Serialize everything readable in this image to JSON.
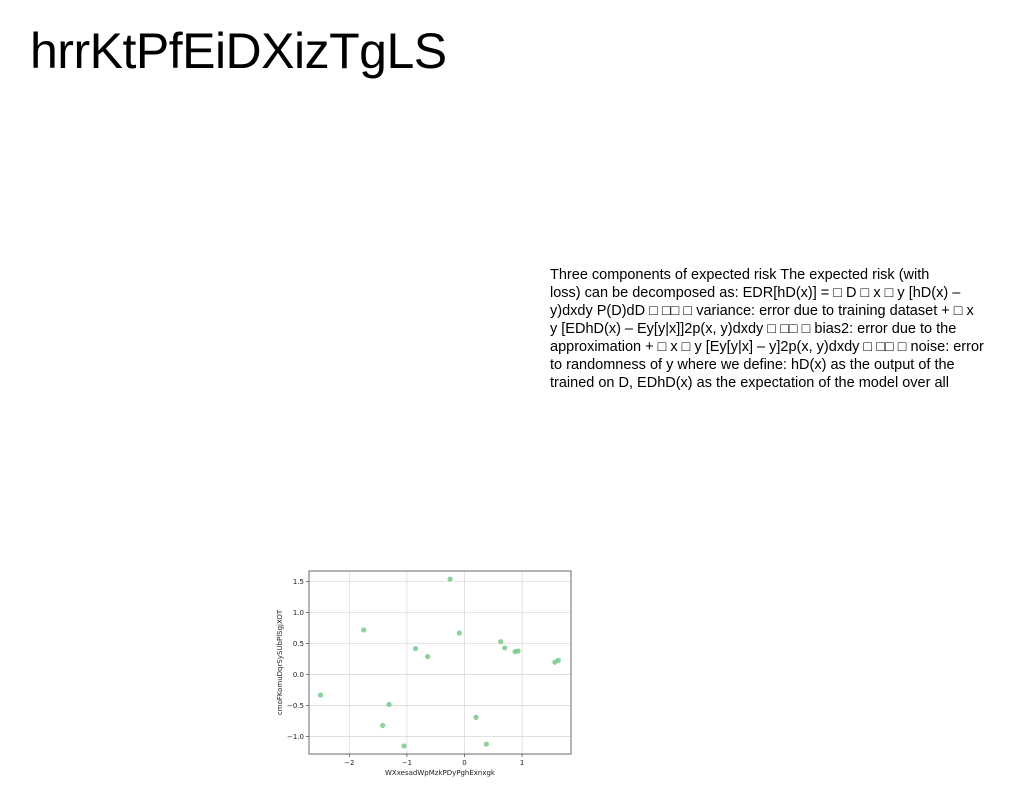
{
  "document": {
    "title": "hrrKtPfEiDXizTgLS",
    "paragraph": "Three components of expected risk The expected risk (with\nloss) can be decomposed as: EDR[hD(x)] = □ D □ x □ y [hD(x) –\ny)dxdy P(D)dD □ □□ □ variance: error due to training dataset + □ x\ny [EDhD(x) – Ey[y|x]]2p(x, y)dxdy □ □□ □ bias2: error due to the\napproximation + □ x □ y [Ey[y|x] – y]2p(x, y)dxdy □ □□ □ noise: error\nto randomness of y where we define: hD(x) as the output of the\ntrained on D, EDhD(x) as the expectation of the model over all"
  },
  "chart_data": {
    "type": "scatter",
    "xlabel": "WXxesadWpMzkPDyPghExnxgk",
    "ylabel": "cmoFKomuDqrSySUbPlSgjXOT",
    "xlim": [
      -2.7,
      1.85
    ],
    "ylim": [
      -1.28,
      1.67
    ],
    "xticks": [
      -2,
      -1,
      0,
      1
    ],
    "xtick_labels": [
      "−2",
      "−1",
      "0",
      "1"
    ],
    "yticks": [
      -1.0,
      -0.5,
      0.0,
      0.5,
      1.0,
      1.5
    ],
    "ytick_labels": [
      "−1.0",
      "−0.5",
      "0.0",
      "0.5",
      "1.0",
      "1.5"
    ],
    "grid": true,
    "point_color": "#77c98a",
    "points": [
      {
        "x": -2.5,
        "y": -0.33
      },
      {
        "x": -1.75,
        "y": 0.72
      },
      {
        "x": -1.42,
        "y": -0.82
      },
      {
        "x": -1.31,
        "y": -0.48
      },
      {
        "x": -1.05,
        "y": -1.15
      },
      {
        "x": -0.85,
        "y": 0.42
      },
      {
        "x": -0.64,
        "y": 0.29
      },
      {
        "x": -0.25,
        "y": 1.54
      },
      {
        "x": -0.09,
        "y": 0.67
      },
      {
        "x": 0.2,
        "y": -0.69
      },
      {
        "x": 0.38,
        "y": -1.12
      },
      {
        "x": 0.63,
        "y": 0.53
      },
      {
        "x": 0.7,
        "y": 0.43
      },
      {
        "x": 0.88,
        "y": 0.37
      },
      {
        "x": 0.93,
        "y": 0.38
      },
      {
        "x": 1.57,
        "y": 0.2
      },
      {
        "x": 1.63,
        "y": 0.23
      }
    ]
  }
}
